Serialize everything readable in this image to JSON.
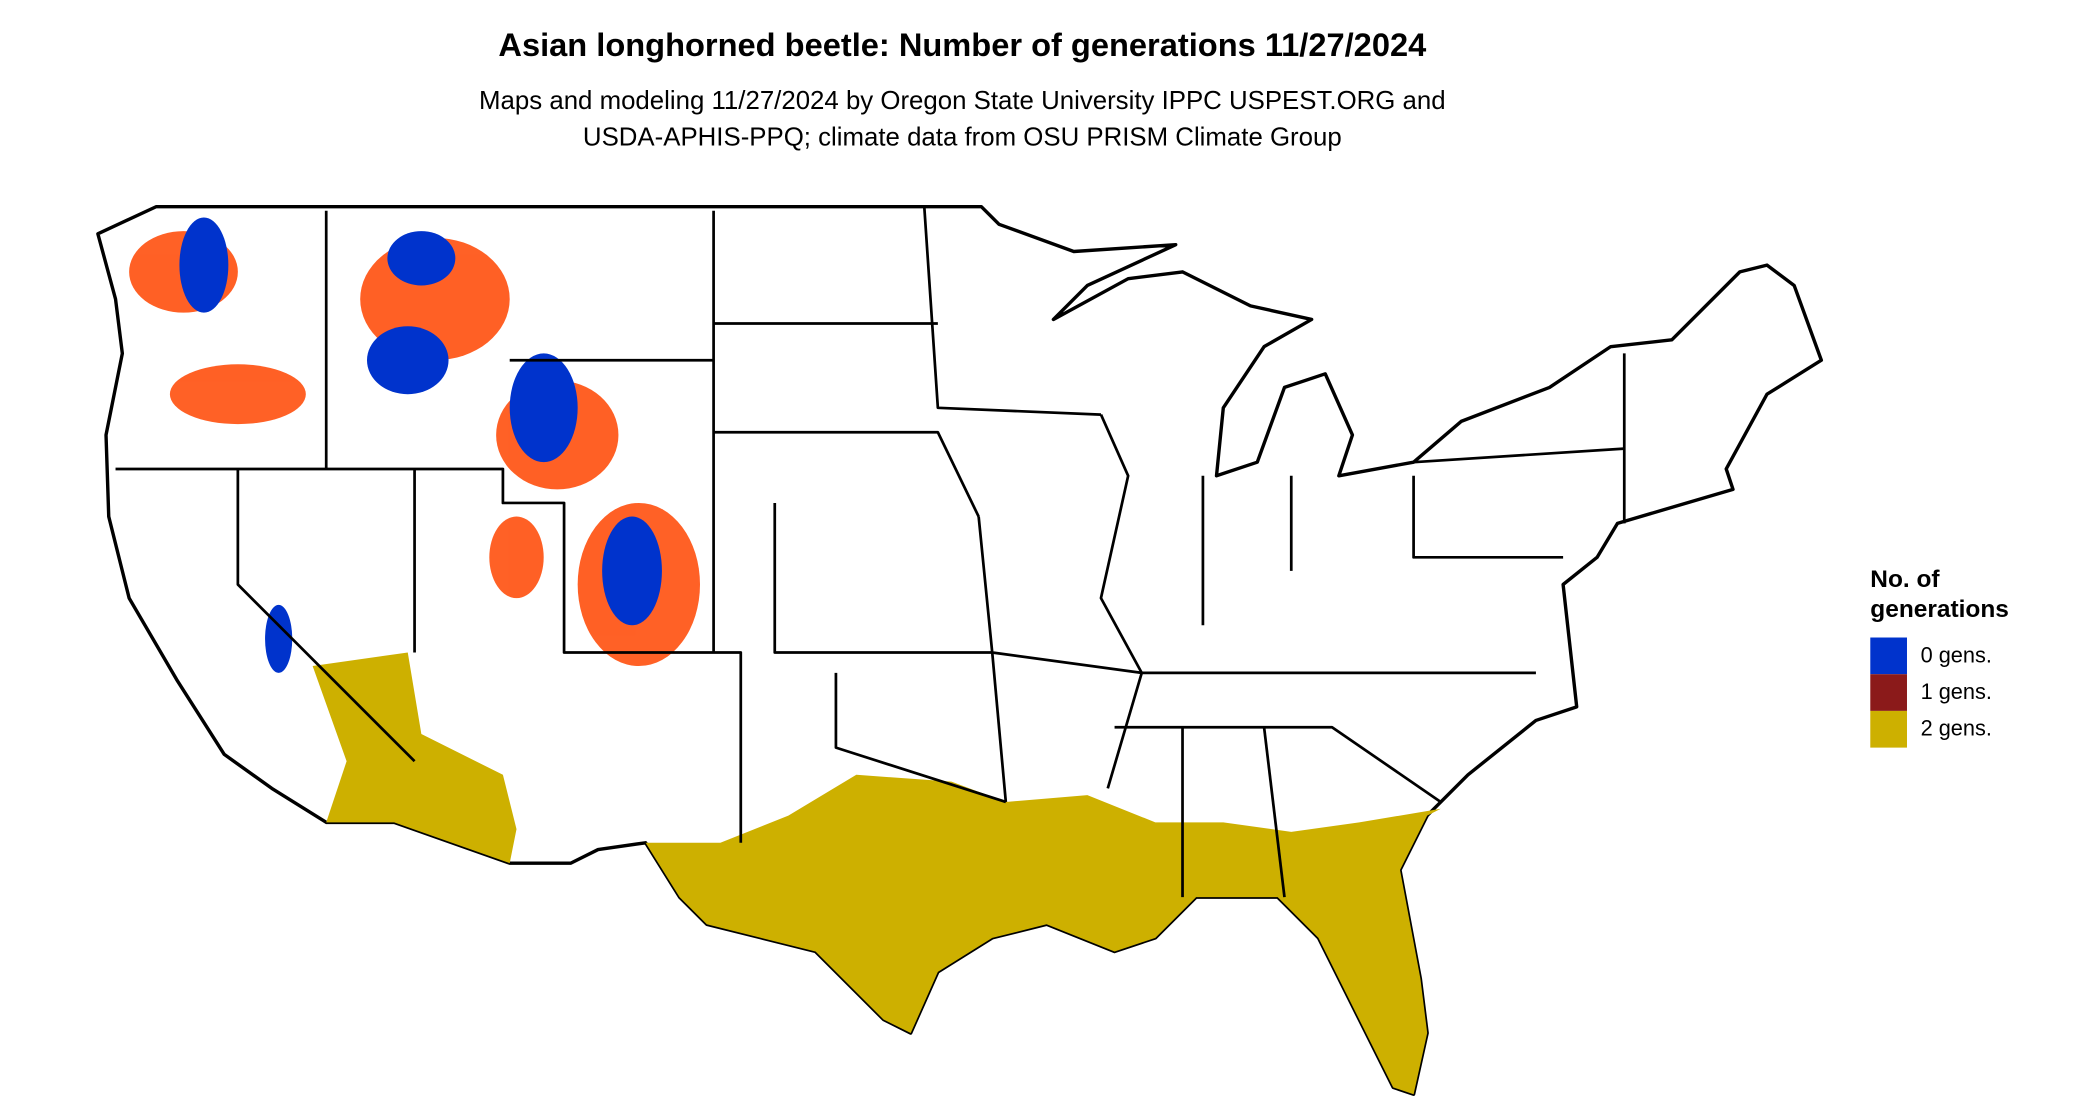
{
  "header": {
    "title": "Asian longhorned beetle: Number of generations 11/27/2024",
    "subtitle": [
      "Maps and modeling 11/27/2024 by Oregon State University IPPC USPEST.ORG and",
      "USDA-APHIS-PPQ; climate data from OSU PRISM Climate Group"
    ]
  },
  "legend": {
    "title": [
      "No. of",
      "generations"
    ],
    "items": [
      {
        "label": "0 gens.",
        "color": "#0033cc"
      },
      {
        "label": "1 gens.",
        "color": "#8b1a1a"
      },
      {
        "label": "2 gens.",
        "color": "#cdb000"
      }
    ]
  }
}
